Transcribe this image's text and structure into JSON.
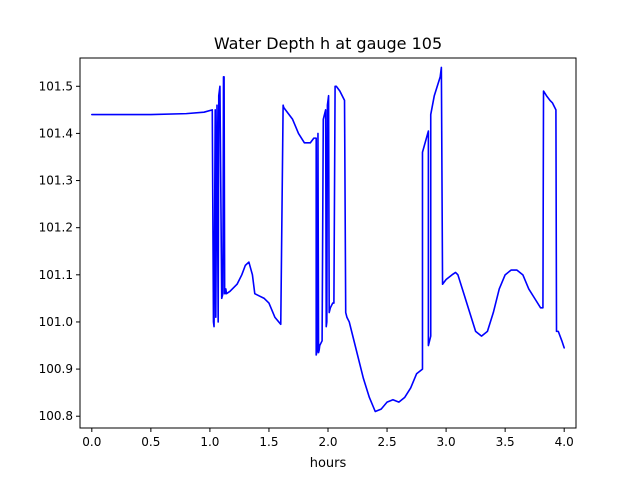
{
  "chart_data": {
    "type": "line",
    "title": "Water Depth h at gauge 105",
    "xlabel": "hours",
    "ylabel": "",
    "xlim": [
      -0.1,
      4.1
    ],
    "ylim": [
      100.775,
      101.56
    ],
    "grid": false,
    "legend": "none",
    "xticks": [
      0.0,
      0.5,
      1.0,
      1.5,
      2.0,
      2.5,
      3.0,
      3.5,
      4.0
    ],
    "xtick_labels": [
      "0.0",
      "0.5",
      "1.0",
      "1.5",
      "2.0",
      "2.5",
      "3.0",
      "3.5",
      "4.0"
    ],
    "yticks": [
      100.8,
      100.9,
      101.0,
      101.1,
      101.2,
      101.3,
      101.4,
      101.5
    ],
    "ytick_labels": [
      "100.8",
      "100.9",
      "101.0",
      "101.1",
      "101.2",
      "101.3",
      "101.4",
      "101.5"
    ],
    "series": [
      {
        "color": "#0000ff",
        "x": [
          0.0,
          0.5,
          0.8,
          0.95,
          1.02,
          1.03,
          1.035,
          1.045,
          1.05,
          1.06,
          1.07,
          1.075,
          1.085,
          1.1,
          1.11,
          1.115,
          1.12,
          1.125,
          1.13,
          1.135,
          1.14,
          1.17,
          1.23,
          1.27,
          1.3,
          1.33,
          1.36,
          1.38,
          1.42,
          1.46,
          1.5,
          1.55,
          1.6,
          1.62,
          1.625,
          1.7,
          1.75,
          1.8,
          1.85,
          1.88,
          1.9,
          1.9,
          1.91,
          1.915,
          1.92,
          1.925,
          1.93,
          1.95,
          1.96,
          1.97,
          1.98,
          1.985,
          1.99,
          1.995,
          2.0,
          2.005,
          2.01,
          2.015,
          2.02,
          2.03,
          2.04,
          2.05,
          2.06,
          2.065,
          2.07,
          2.1,
          2.14,
          2.15,
          2.16,
          2.18,
          2.2,
          2.3,
          2.35,
          2.4,
          2.45,
          2.5,
          2.55,
          2.6,
          2.65,
          2.7,
          2.75,
          2.8,
          2.8,
          2.85,
          2.85,
          2.86,
          2.87,
          2.87,
          2.9,
          2.95,
          2.96,
          2.97,
          3.0,
          3.05,
          3.08,
          3.1,
          3.15,
          3.2,
          3.25,
          3.3,
          3.35,
          3.4,
          3.45,
          3.5,
          3.55,
          3.6,
          3.65,
          3.7,
          3.75,
          3.8,
          3.82,
          3.825,
          3.85,
          3.88,
          3.9,
          3.93,
          3.935,
          3.95,
          3.98,
          4.0
        ],
        "y": [
          101.44,
          101.44,
          101.442,
          101.445,
          101.45,
          101.0,
          100.99,
          101.45,
          101.01,
          101.46,
          101.0,
          101.48,
          101.5,
          101.05,
          101.06,
          101.52,
          101.52,
          101.06,
          101.06,
          101.07,
          101.06,
          101.065,
          101.08,
          101.1,
          101.12,
          101.127,
          101.1,
          101.06,
          101.055,
          101.05,
          101.04,
          101.01,
          100.995,
          101.46,
          101.455,
          101.43,
          101.4,
          101.38,
          101.38,
          101.39,
          101.39,
          100.93,
          100.94,
          101.4,
          100.935,
          100.94,
          100.95,
          100.96,
          101.43,
          101.44,
          101.45,
          100.99,
          101.0,
          101.46,
          101.47,
          101.48,
          101.02,
          101.025,
          101.03,
          101.035,
          101.04,
          101.04,
          101.5,
          101.5,
          101.5,
          101.49,
          101.47,
          101.02,
          101.01,
          101.0,
          100.98,
          100.88,
          100.84,
          100.81,
          100.815,
          100.83,
          100.835,
          100.83,
          100.84,
          100.86,
          100.89,
          100.9,
          101.36,
          101.405,
          100.95,
          100.96,
          100.97,
          101.44,
          101.48,
          101.52,
          101.54,
          101.08,
          101.09,
          101.1,
          101.105,
          101.1,
          101.06,
          101.02,
          100.98,
          100.97,
          100.98,
          101.02,
          101.07,
          101.1,
          101.11,
          101.11,
          101.1,
          101.07,
          101.05,
          101.03,
          101.03,
          101.49,
          101.48,
          101.47,
          101.465,
          101.45,
          100.98,
          100.98,
          100.96,
          100.945
        ]
      }
    ]
  }
}
